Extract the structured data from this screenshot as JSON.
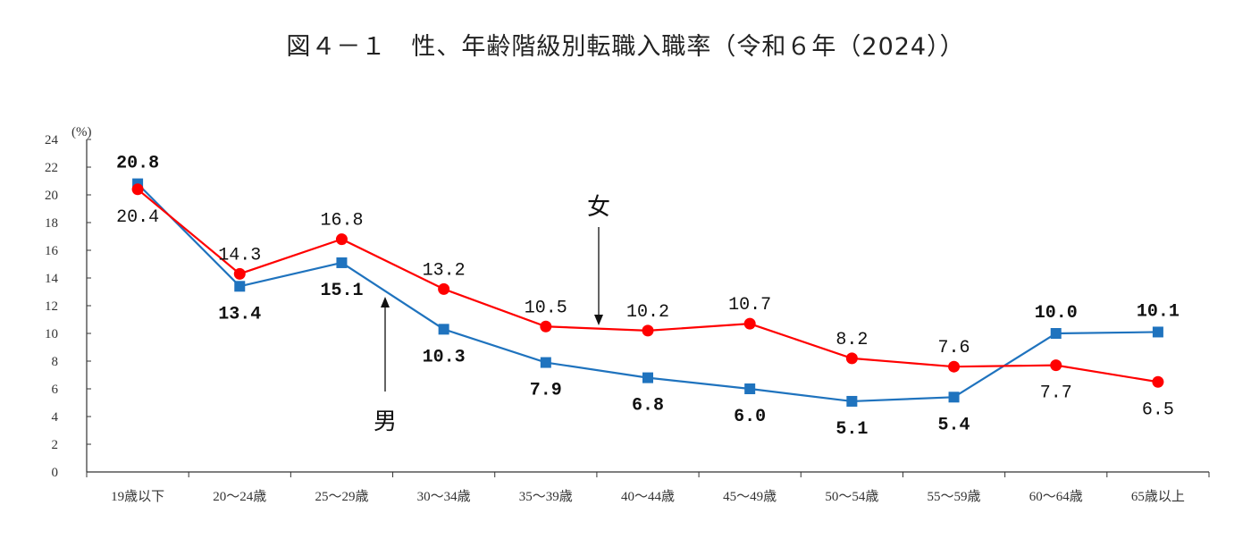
{
  "title": "図４－１　性、年齢階級別転職入職率（令和６年（2024））",
  "chart_data": {
    "type": "line",
    "title": "図４－１　性、年齢階級別転職入職率（令和６年（2024））",
    "ylabel": "(%)",
    "ylim": [
      0,
      24
    ],
    "yticks": [
      0,
      2,
      4,
      6,
      8,
      10,
      12,
      14,
      16,
      18,
      20,
      22,
      24
    ],
    "grid": false,
    "categories": [
      "19歳以下",
      "20～24歳",
      "25～29歳",
      "30～34歳",
      "35～39歳",
      "40～44歳",
      "45～49歳",
      "50～54歳",
      "55～59歳",
      "60～64歳",
      "65歳以上"
    ],
    "series": [
      {
        "values": [
          20.8,
          13.4,
          15.1,
          10.3,
          7.9,
          6.8,
          6.0,
          5.1,
          5.4,
          10.0,
          10.1
        ],
        "labels": [
          "20.8",
          "13.4",
          "15.1",
          "10.3",
          "7.9",
          "6.8",
          "6.0",
          "5.1",
          "5.4",
          "10.0",
          "10.1"
        ],
        "color": "#1f73be",
        "marker": "square"
      },
      {
        "values": [
          20.4,
          14.3,
          16.8,
          13.2,
          10.5,
          10.2,
          10.7,
          8.2,
          7.6,
          7.7,
          6.5
        ],
        "labels": [
          "20.4",
          "14.3",
          "16.8",
          "13.2",
          "10.5",
          "10.2",
          "10.7",
          "8.2",
          "7.6",
          "7.7",
          "6.5"
        ],
        "color": "#ff0000",
        "marker": "circle"
      }
    ],
    "annotations": {
      "male": "男",
      "female": "女"
    }
  }
}
